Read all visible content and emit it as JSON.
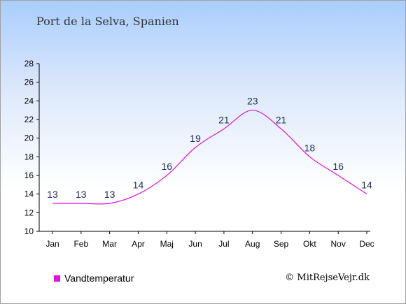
{
  "title": "Port de la Selva, Spanien",
  "credit": "© MitRejseVejr.dk",
  "colors": {
    "series": "#e010dd",
    "axis": "#000000",
    "label": "#1e2e54"
  },
  "chart_data": {
    "type": "line",
    "categories": [
      "Jan",
      "Feb",
      "Mar",
      "Apr",
      "Maj",
      "Jun",
      "Jul",
      "Aug",
      "Sep",
      "Okt",
      "Nov",
      "Dec"
    ],
    "series": [
      {
        "name": "Vandtemperatur",
        "values": [
          13,
          13,
          13,
          14,
          16,
          19,
          21,
          23,
          21,
          18,
          16,
          14
        ]
      }
    ],
    "ylim": [
      10,
      28
    ],
    "yticks": [
      10,
      12,
      14,
      16,
      18,
      20,
      22,
      24,
      26,
      28
    ],
    "grid": false,
    "legend": "bottom-left"
  }
}
